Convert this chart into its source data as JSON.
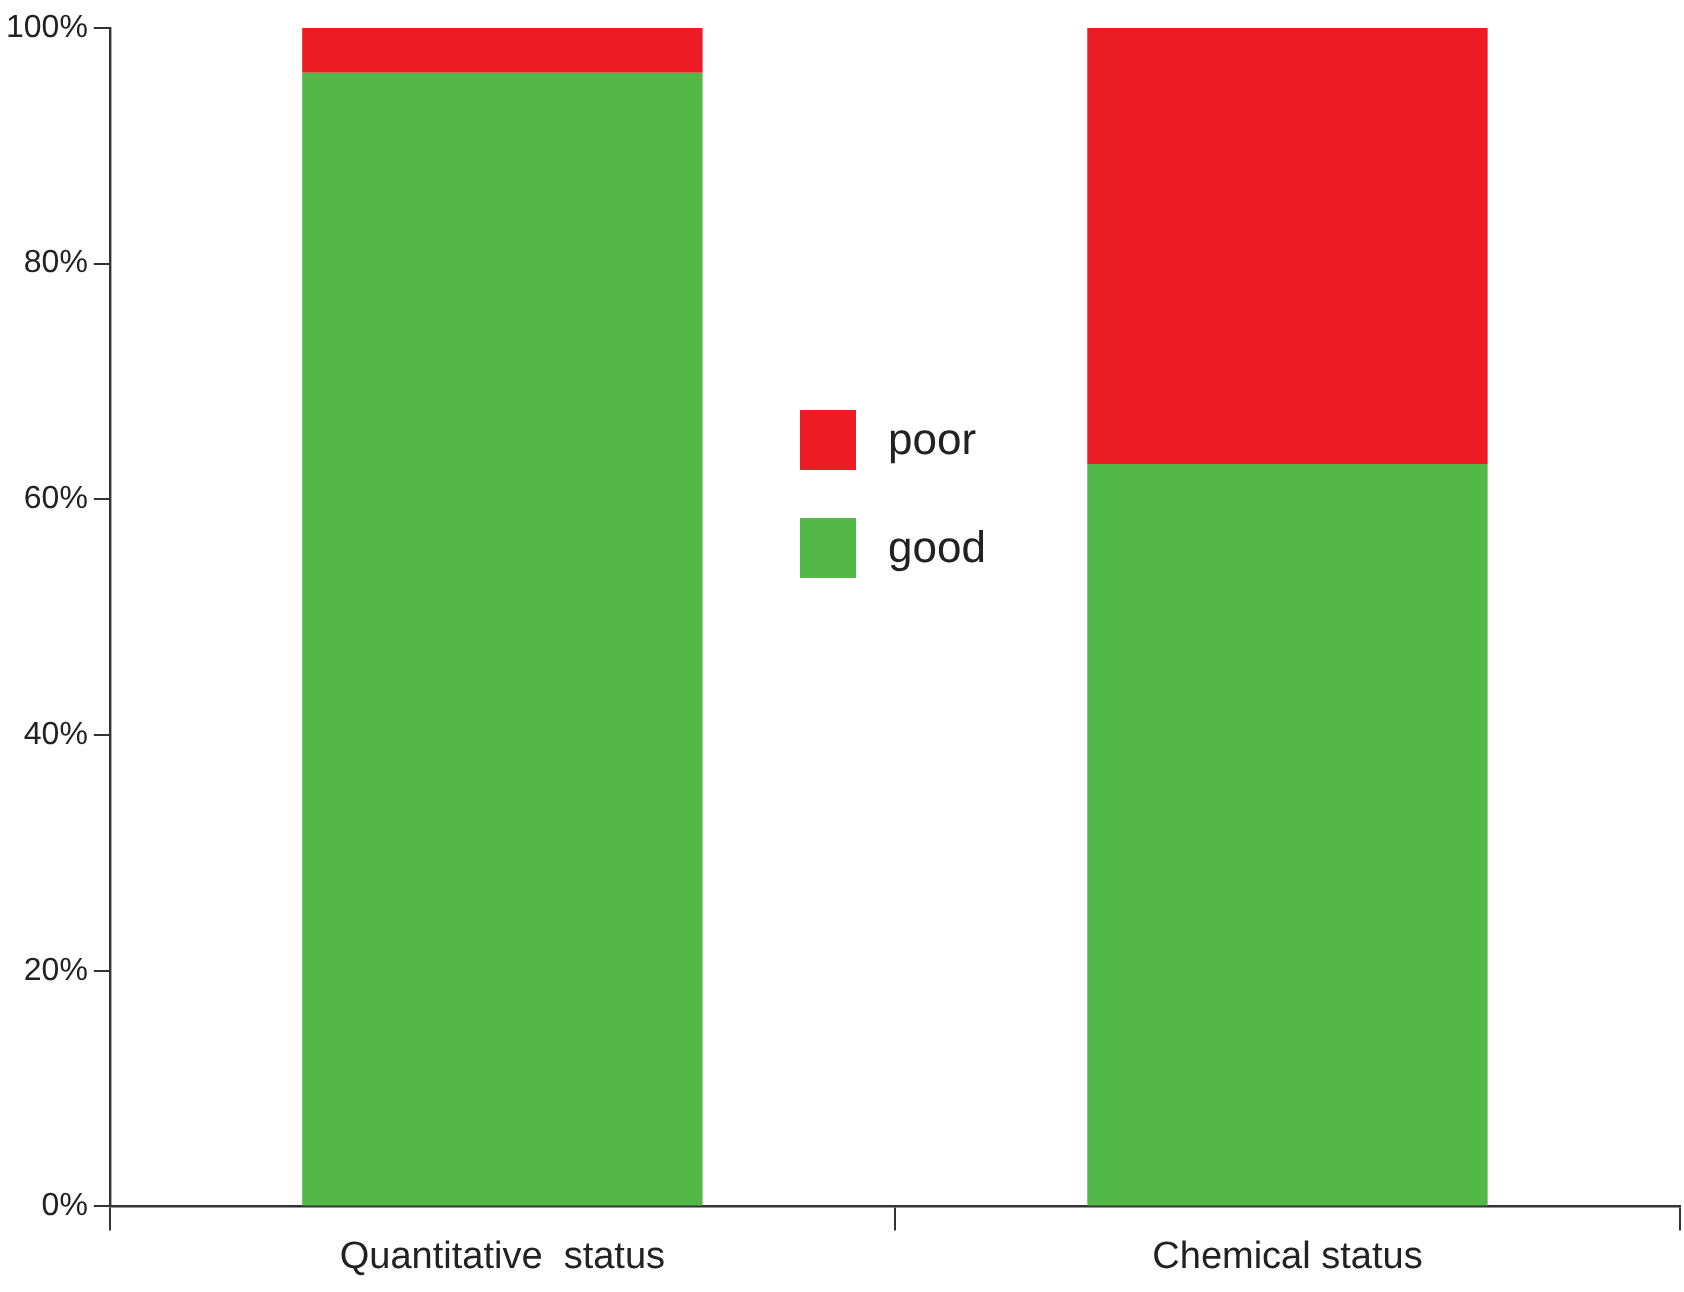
{
  "chart_data": {
    "type": "bar",
    "stacked": true,
    "categories": [
      "Quantitative  status",
      "Chemical status"
    ],
    "series": [
      {
        "name": "good",
        "color": "#52b847",
        "values": [
          96.2,
          63
        ]
      },
      {
        "name": "poor",
        "color": "#ed1c24",
        "values": [
          3.8,
          37
        ]
      }
    ],
    "ylim": [
      0,
      100
    ],
    "yticks": [
      {
        "value": 0,
        "label": "0%"
      },
      {
        "value": 20,
        "label": "20%"
      },
      {
        "value": 40,
        "label": "40%"
      },
      {
        "value": 60,
        "label": "60%"
      },
      {
        "value": 80,
        "label": "80%"
      },
      {
        "value": 100,
        "label": "100%"
      }
    ],
    "grid": false,
    "legend": "top"
  }
}
